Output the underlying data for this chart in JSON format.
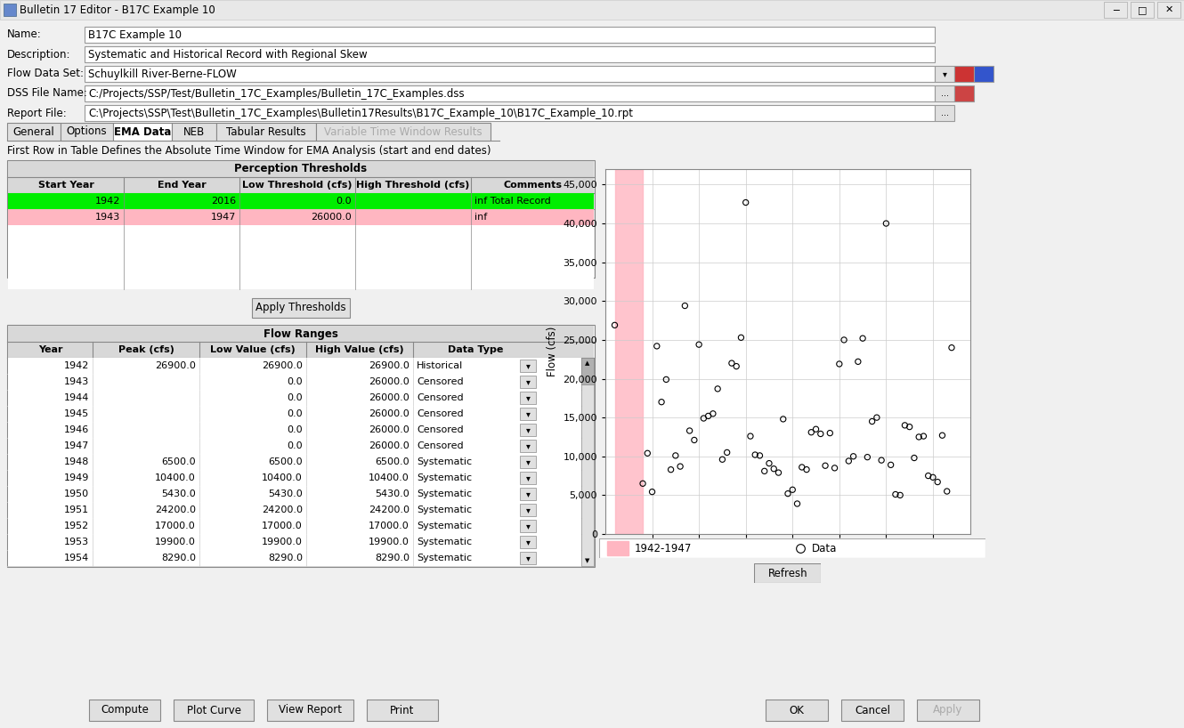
{
  "window_title": "Bulletin 17 Editor - B17C Example 10",
  "name_val": "B17C Example 10",
  "description_val": "Systematic and Historical Record with Regional Skew",
  "flow_data_set": "Schuylkill River-Berne-FLOW",
  "dss_file": "C:/Projects/SSP/Test/Bulletin_17C_Examples/Bulletin_17C_Examples.dss",
  "report_file": "C:\\Projects\\SSP\\Test\\Bulletin_17C_Examples\\Bulletin17Results\\B17C_Example_10\\B17C_Example_10.rpt",
  "tabs": [
    "General",
    "Options",
    "EMA Data",
    "NEB",
    "Tabular Results",
    "Variable Time Window Results"
  ],
  "active_tab": "EMA Data",
  "note": "First Row in Table Defines the Absolute Time Window for EMA Analysis (start and end dates)",
  "perception_header": "Perception Thresholds",
  "perception_cols": [
    "Start Year",
    "End Year",
    "Low Threshold (cfs)",
    "High Threshold (cfs)",
    "Comments"
  ],
  "perception_col_widths": [
    130,
    130,
    130,
    130,
    140
  ],
  "perception_rows": [
    [
      "1942",
      "2016",
      "0.0",
      "",
      "inf Total Record"
    ],
    [
      "1943",
      "1947",
      "26000.0",
      "",
      "inf"
    ]
  ],
  "green_row_color": "#00ee00",
  "pink_row_color": "#ffb6c1",
  "flow_header": "Flow Ranges",
  "flow_cols": [
    "Year",
    "Peak (cfs)",
    "Low Value (cfs)",
    "High Value (cfs)",
    "Data Type"
  ],
  "flow_col_widths": [
    95,
    120,
    120,
    120,
    140
  ],
  "flow_rows": [
    [
      "1942",
      "26900.0",
      "26900.0",
      "26900.0",
      "Historical"
    ],
    [
      "1943",
      "",
      "0.0",
      "26000.0",
      "Censored"
    ],
    [
      "1944",
      "",
      "0.0",
      "26000.0",
      "Censored"
    ],
    [
      "1945",
      "",
      "0.0",
      "26000.0",
      "Censored"
    ],
    [
      "1946",
      "",
      "0.0",
      "26000.0",
      "Censored"
    ],
    [
      "1947",
      "",
      "0.0",
      "26000.0",
      "Censored"
    ],
    [
      "1948",
      "6500.0",
      "6500.0",
      "6500.0",
      "Systematic"
    ],
    [
      "1949",
      "10400.0",
      "10400.0",
      "10400.0",
      "Systematic"
    ],
    [
      "1950",
      "5430.0",
      "5430.0",
      "5430.0",
      "Systematic"
    ],
    [
      "1951",
      "24200.0",
      "24200.0",
      "24200.0",
      "Systematic"
    ],
    [
      "1952",
      "17000.0",
      "17000.0",
      "17000.0",
      "Systematic"
    ],
    [
      "1953",
      "19900.0",
      "19900.0",
      "19900.0",
      "Systematic"
    ],
    [
      "1954",
      "8290.0",
      "8290.0",
      "8290.0",
      "Systematic"
    ]
  ],
  "scatter_years": [
    1942,
    1948,
    1949,
    1950,
    1951,
    1952,
    1953,
    1954,
    1955,
    1956,
    1957,
    1958,
    1959,
    1960,
    1961,
    1962,
    1963,
    1964,
    1965,
    1966,
    1967,
    1968,
    1969,
    1970,
    1971,
    1972,
    1973,
    1974,
    1975,
    1976,
    1977,
    1978,
    1979,
    1980,
    1981,
    1982,
    1983,
    1984,
    1985,
    1986,
    1987,
    1988,
    1989,
    1990,
    1991,
    1992,
    1993,
    1994,
    1995,
    1996,
    1997,
    1998,
    1999,
    2000,
    2001,
    2002,
    2003,
    2004,
    2005,
    2006,
    2007,
    2008,
    2009,
    2010,
    2011,
    2012,
    2013,
    2014
  ],
  "scatter_flows": [
    26900,
    6500,
    10400,
    5430,
    24200,
    17000,
    19900,
    8290,
    10100,
    8700,
    29400,
    13300,
    12100,
    24400,
    14900,
    15200,
    15500,
    18700,
    9600,
    10500,
    22000,
    21600,
    25300,
    42700,
    12600,
    10200,
    10100,
    8100,
    9100,
    8400,
    7900,
    14800,
    5200,
    5700,
    3900,
    8600,
    8300,
    13100,
    13500,
    12900,
    8800,
    13000,
    8500,
    21900,
    25000,
    9400,
    10000,
    22200,
    25200,
    9900,
    14500,
    15000,
    9500,
    40000,
    8900,
    5100,
    5000,
    14000,
    13800,
    9800,
    12500,
    12600,
    7500,
    7300,
    6700,
    12700,
    5500,
    24000
  ],
  "bg_color": "#f0f0f0",
  "titlebar_color": "#e8e8e8",
  "white": "#ffffff",
  "header_color": "#d8d8d8",
  "button_color": "#e0e0e0",
  "border_color": "#888888",
  "light_border": "#cccccc"
}
